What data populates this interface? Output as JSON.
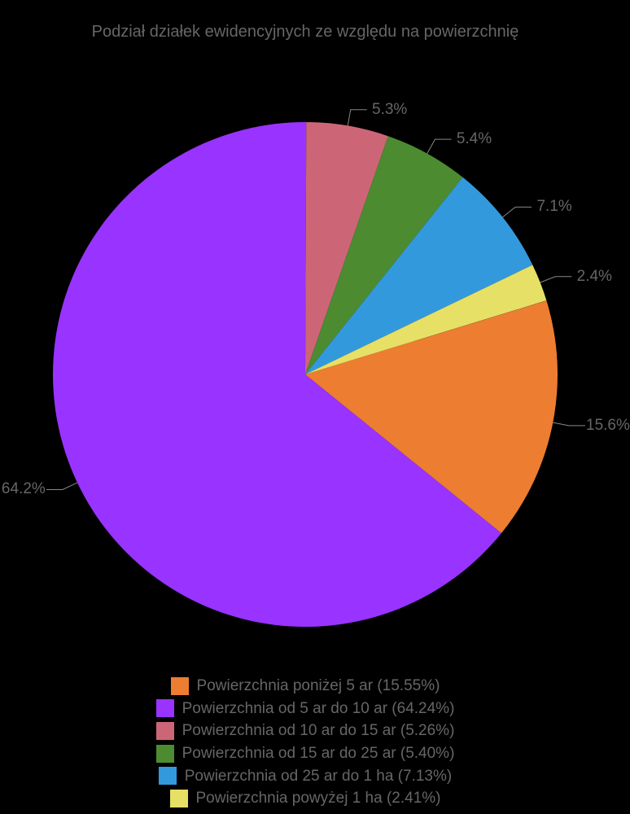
{
  "chart": {
    "type": "pie",
    "title": "Podział działek ewidencyjnych ze względu na powierzchnię",
    "title_color": "#666666",
    "title_fontsize": 20,
    "background_color": "#000000",
    "label_color": "#666666",
    "label_fontsize": 19,
    "legend_fontsize": 19,
    "radius": 310,
    "start_angle_deg": 73,
    "slices": [
      {
        "label": "Powierzchnia poniżej 5 ar",
        "percent": 15.55,
        "display_pct": "15.6%",
        "color": "#ed7d31"
      },
      {
        "label": "Powierzchnia od 5 ar do 10 ar",
        "percent": 64.24,
        "display_pct": "64.2%",
        "color": "#9933ff"
      },
      {
        "label": "Powierzchnia od 10 ar do 15 ar",
        "percent": 5.26,
        "display_pct": "5.3%",
        "color": "#cc6677"
      },
      {
        "label": "Powierzchnia od 15 ar do 25 ar",
        "percent": 5.4,
        "display_pct": "5.4%",
        "color": "#4d8b31"
      },
      {
        "label": "Powierzchnia od 25 ar do 1 ha",
        "percent": 7.13,
        "display_pct": "7.1%",
        "color": "#3399dd"
      },
      {
        "label": "Powierzchnia powyżej 1 ha",
        "percent": 2.41,
        "display_pct": "2.4%",
        "color": "#e6e066"
      }
    ],
    "legend_items": [
      "Powierzchnia poniżej 5 ar (15.55%)",
      "Powierzchnia od 5 ar do 10 ar (64.24%)",
      "Powierzchnia od 10 ar do 15 ar (5.26%)",
      "Powierzchnia od 15 ar do 25 ar (5.40%)",
      "Powierzchnia od 25 ar do 1 ha (7.13%)",
      "Powierzchnia powyżej 1 ha (2.41%)"
    ]
  }
}
